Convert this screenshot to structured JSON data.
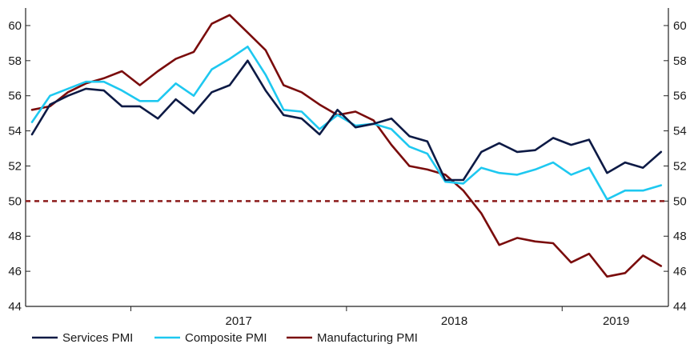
{
  "chart_data": {
    "type": "line",
    "title": "",
    "xlabel": "",
    "ylabel": "",
    "ylim": [
      44,
      61
    ],
    "yticks": [
      44,
      46,
      48,
      50,
      52,
      54,
      56,
      58,
      60
    ],
    "x_tick_labels": [
      "2017",
      "2018",
      "2019"
    ],
    "x": [
      "2016-07",
      "2016-08",
      "2016-09",
      "2016-10",
      "2016-11",
      "2016-12",
      "2017-01",
      "2017-02",
      "2017-03",
      "2017-04",
      "2017-05",
      "2017-06",
      "2017-07",
      "2017-08",
      "2017-09",
      "2017-10",
      "2017-11",
      "2017-12",
      "2018-01",
      "2018-02",
      "2018-03",
      "2018-04",
      "2018-05",
      "2018-06",
      "2018-07",
      "2018-08",
      "2018-09",
      "2018-10",
      "2018-11",
      "2018-12",
      "2019-01",
      "2019-02",
      "2019-03",
      "2019-04",
      "2019-05",
      "2019-06"
    ],
    "series": [
      {
        "name": "Services PMI",
        "color": "#0d1a45",
        "values": [
          53.8,
          55.5,
          56.0,
          56.4,
          56.3,
          55.4,
          55.4,
          54.7,
          55.8,
          55.0,
          56.2,
          56.6,
          58.0,
          56.3,
          54.9,
          54.7,
          53.8,
          55.2,
          54.2,
          54.4,
          54.7,
          53.7,
          53.4,
          51.2,
          51.2,
          52.8,
          53.3,
          52.8,
          52.9,
          53.6,
          53.2,
          53.5,
          51.6,
          52.2,
          51.9,
          52.8
        ]
      },
      {
        "name": "Composite PMI",
        "color": "#1ec8f0",
        "values": [
          54.5,
          56.0,
          56.4,
          56.8,
          56.8,
          56.3,
          55.7,
          55.7,
          56.7,
          56.0,
          57.5,
          58.1,
          58.8,
          57.2,
          55.2,
          55.1,
          54.1,
          54.9,
          54.3,
          54.4,
          54.1,
          53.1,
          52.7,
          51.1,
          51.0,
          51.9,
          51.6,
          51.5,
          51.8,
          52.2,
          51.5,
          51.9,
          50.1,
          50.6,
          50.6,
          50.9
        ]
      },
      {
        "name": "Manufacturing PMI",
        "color": "#7a0c0c",
        "values": [
          55.2,
          55.4,
          56.2,
          56.7,
          57.0,
          57.4,
          56.6,
          57.4,
          58.1,
          58.5,
          60.1,
          60.6,
          59.6,
          58.6,
          56.6,
          56.2,
          55.5,
          54.9,
          55.1,
          54.6,
          53.2,
          52.0,
          51.8,
          51.5,
          50.6,
          49.3,
          47.5,
          47.9,
          47.7,
          47.6,
          46.5,
          47.0,
          45.7,
          45.9,
          46.9,
          46.3
        ]
      }
    ],
    "reference_line": {
      "value": 50,
      "style": "dashed",
      "color": "#8b1a1a"
    },
    "grid": false,
    "legend_position": "bottom-left"
  }
}
